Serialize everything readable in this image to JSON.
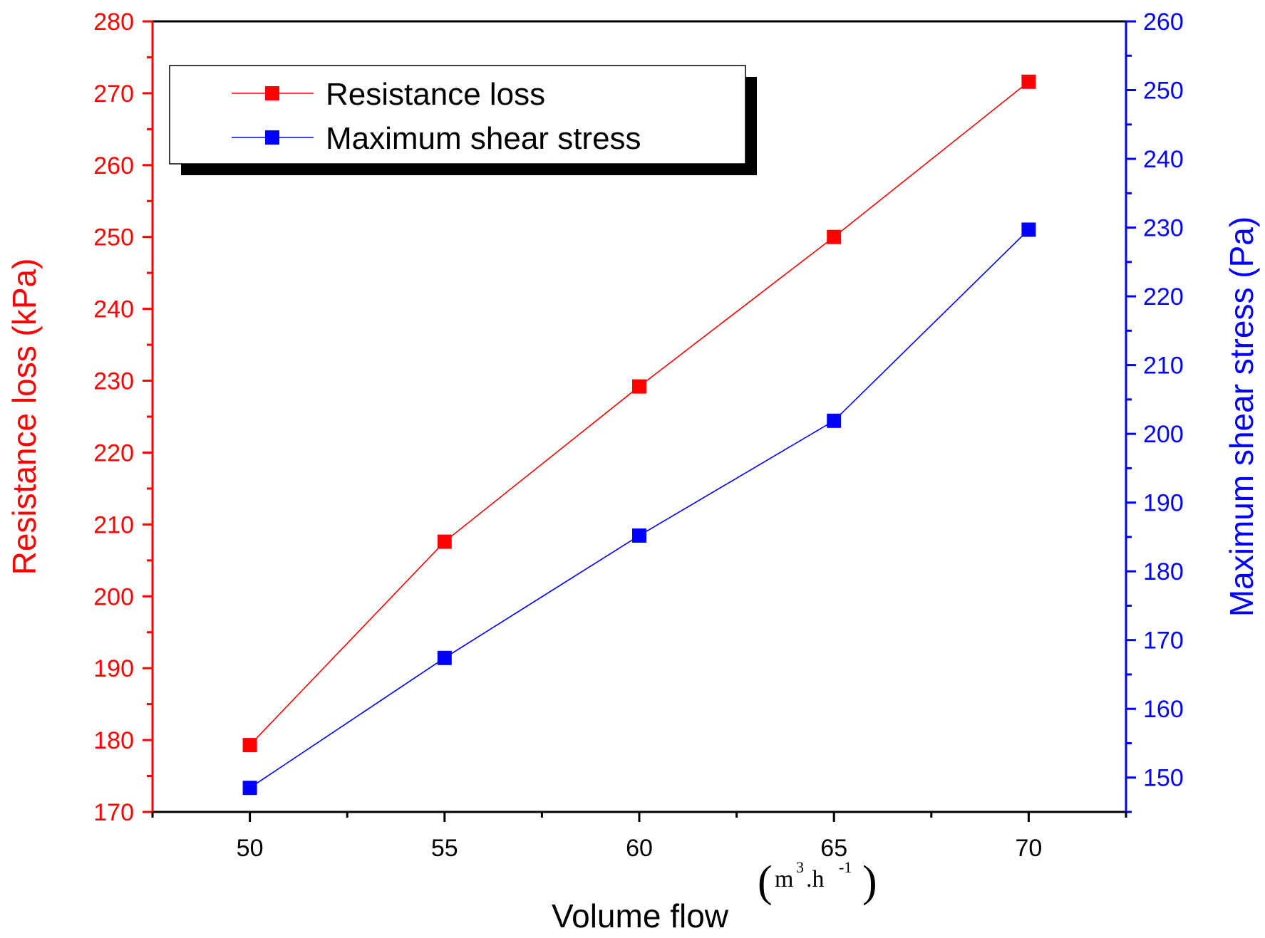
{
  "chart_data": {
    "type": "line",
    "x": [
      50,
      55,
      60,
      65,
      70
    ],
    "xlim": [
      47.5,
      72.5
    ],
    "xticks": [
      50,
      55,
      60,
      65,
      70
    ],
    "xlabel": "Volume flow",
    "xunit": {
      "m": "m",
      "sup1": "3",
      "mid": ".h",
      "sup2": "-1"
    },
    "series": [
      {
        "name": "Resistance loss",
        "axis": "left",
        "color": "#ff0000",
        "values": [
          179.3,
          207.6,
          229.2,
          250.0,
          271.6
        ]
      },
      {
        "name": "Maximum shear stress",
        "axis": "right",
        "color": "#0000ff",
        "values": [
          148.5,
          167.4,
          185.2,
          201.9,
          229.7
        ]
      }
    ],
    "left_axis": {
      "label": "Resistance loss (kPa)",
      "ylim": [
        170,
        280
      ],
      "ticks": [
        170,
        180,
        190,
        200,
        210,
        220,
        230,
        240,
        250,
        260,
        270,
        280
      ],
      "color": "#ff0000"
    },
    "right_axis": {
      "label": "Maximum shear stress (Pa)",
      "ylim": [
        145,
        260
      ],
      "ticks": [
        150,
        160,
        170,
        180,
        190,
        200,
        210,
        220,
        230,
        240,
        250,
        260
      ],
      "color": "#0000ff"
    },
    "legend_position": "top-left"
  }
}
